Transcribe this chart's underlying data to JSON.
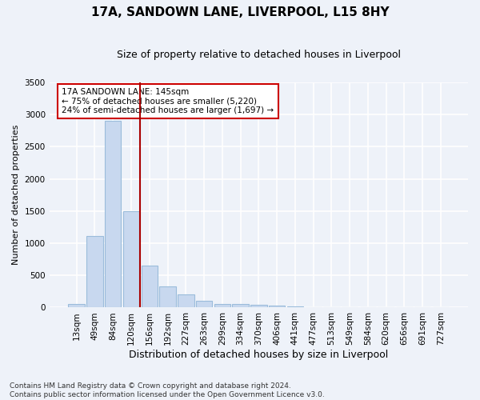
{
  "title": "17A, SANDOWN LANE, LIVERPOOL, L15 8HY",
  "subtitle": "Size of property relative to detached houses in Liverpool",
  "xlabel": "Distribution of detached houses by size in Liverpool",
  "ylabel": "Number of detached properties",
  "footnote": "Contains HM Land Registry data © Crown copyright and database right 2024.\nContains public sector information licensed under the Open Government Licence v3.0.",
  "bar_labels": [
    "13sqm",
    "49sqm",
    "84sqm",
    "120sqm",
    "156sqm",
    "192sqm",
    "227sqm",
    "263sqm",
    "299sqm",
    "334sqm",
    "370sqm",
    "406sqm",
    "441sqm",
    "477sqm",
    "513sqm",
    "549sqm",
    "584sqm",
    "620sqm",
    "656sqm",
    "691sqm",
    "727sqm"
  ],
  "bar_values": [
    50,
    1110,
    2900,
    1500,
    650,
    330,
    200,
    100,
    60,
    55,
    40,
    25,
    20,
    10,
    5,
    2,
    2,
    1,
    0,
    0,
    0
  ],
  "bar_color": "#c8d8ef",
  "bar_edgecolor": "#9bbcdb",
  "vline_x": 3.5,
  "vline_color": "#aa0000",
  "annotation_text": "17A SANDOWN LANE: 145sqm\n← 75% of detached houses are smaller (5,220)\n24% of semi-detached houses are larger (1,697) →",
  "annotation_box_edgecolor": "#cc0000",
  "ylim": [
    0,
    3500
  ],
  "yticks": [
    0,
    500,
    1000,
    1500,
    2000,
    2500,
    3000,
    3500
  ],
  "background_color": "#eef2f9",
  "plot_background": "#eef2f9",
  "grid_color": "#ffffff",
  "title_fontsize": 11,
  "subtitle_fontsize": 9,
  "xlabel_fontsize": 9,
  "ylabel_fontsize": 8,
  "tick_fontsize": 7.5,
  "annot_fontsize": 7.5,
  "footnote_fontsize": 6.5
}
